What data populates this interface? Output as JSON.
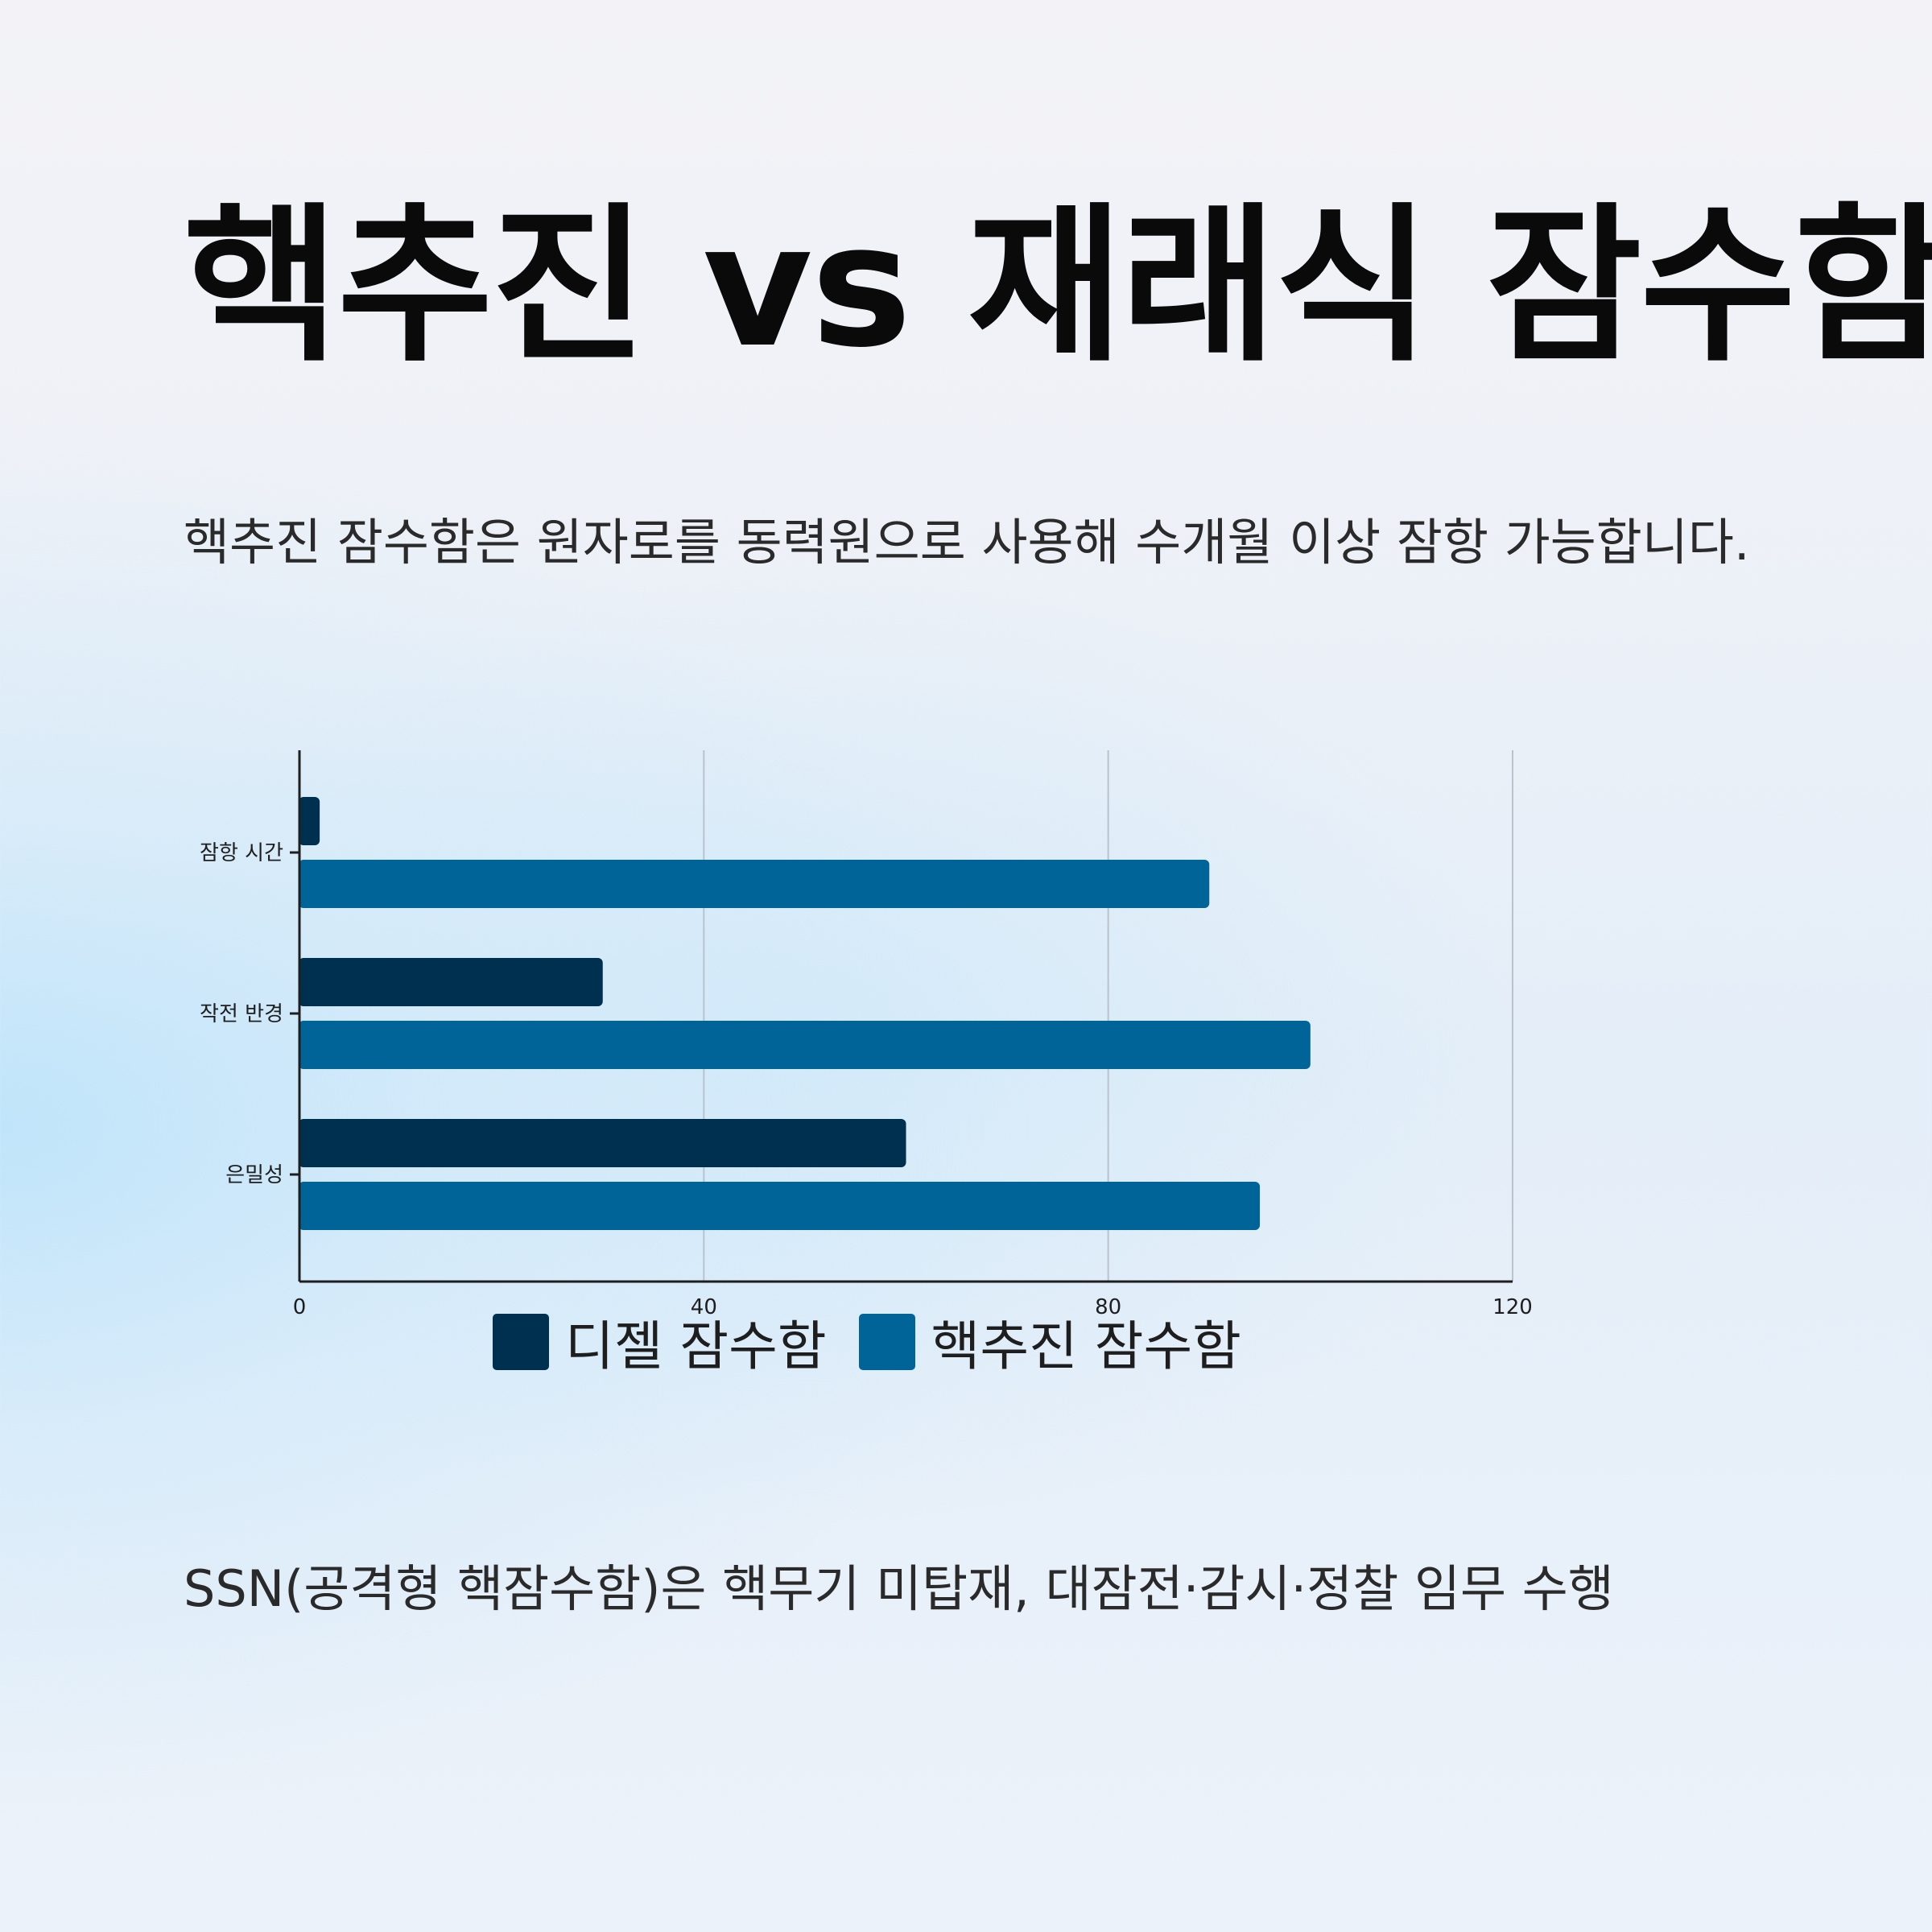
{
  "title": "핵추진 vs 재래식 잠수함",
  "intro": "핵추진 잠수함은 원자로를 동력원으로 사용해 수개월 이상 잠항 가능합니다.",
  "footer": "SSN(공격형 핵잠수함)은 핵무기 미탑재, 대잠전·감시·정찰 임무 수행",
  "chart_data": {
    "type": "bar",
    "orientation": "horizontal",
    "categories": [
      "잠항 시간",
      "작전 반경",
      "은밀성"
    ],
    "series": [
      {
        "name": "디젤 잠수함",
        "values": [
          2,
          30,
          60
        ],
        "color": "#00304f"
      },
      {
        "name": "핵추진 잠수함",
        "values": [
          90,
          100,
          95
        ],
        "color": "#006498"
      }
    ],
    "xlim": [
      0,
      120
    ],
    "xticks": [
      "0",
      "40",
      "80",
      "120"
    ],
    "grid": "vertical",
    "legend": "bottom-center",
    "title": "",
    "xlabel": "",
    "ylabel": ""
  }
}
